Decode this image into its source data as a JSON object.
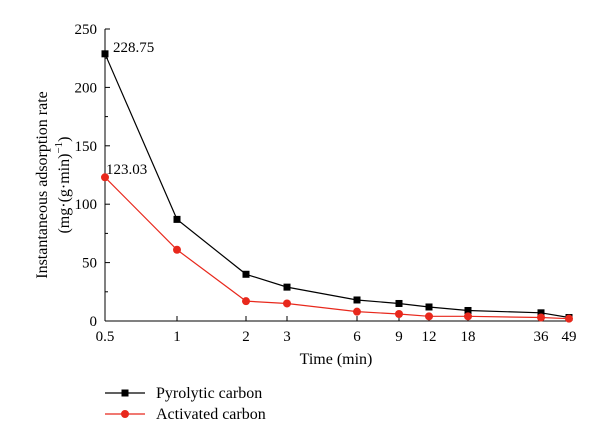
{
  "chart_data": {
    "type": "line",
    "title": "",
    "xlabel": "Time (min)",
    "ylabel": "Instantaneous adsorption rate",
    "ylabel_units_prefix": "(mg·(g·min)",
    "ylabel_units_exponent": "−1",
    "ylabel_units_suffix": ")",
    "ylim": [
      0,
      250
    ],
    "yticks": [
      0,
      50,
      100,
      150,
      200,
      250
    ],
    "x_scale": "categorical (non-uniform time spacing)",
    "x": [
      "0.5",
      "1",
      "2",
      "3",
      "6",
      "9",
      "12",
      "18",
      "36",
      "49"
    ],
    "series": [
      {
        "name": "Pyrolytic carbon",
        "marker": "square",
        "color": "#000000",
        "values": [
          228.75,
          87,
          40,
          29,
          18,
          15,
          12,
          9,
          7,
          3
        ]
      },
      {
        "name": "Activated carbon",
        "marker": "circle",
        "color": "#e8281c",
        "values": [
          123.03,
          61,
          17,
          15,
          8,
          6,
          4,
          4,
          3,
          2
        ]
      }
    ],
    "annotations": [
      "228.75",
      "123.03"
    ],
    "grid": false,
    "legend_position": "bottom-left, below plot"
  }
}
